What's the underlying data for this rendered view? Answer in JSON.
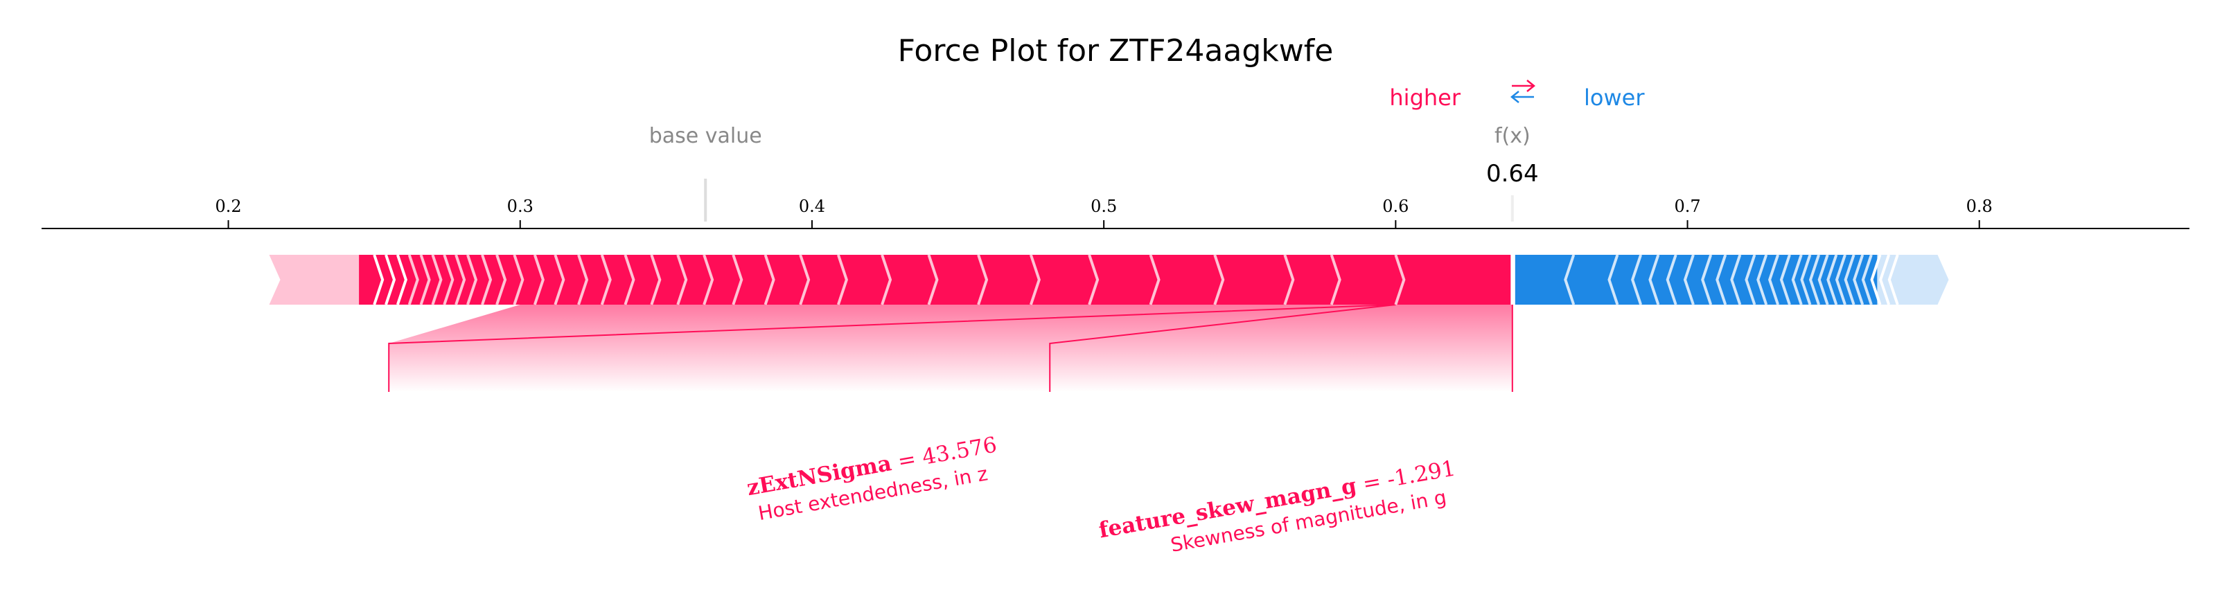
{
  "chart_data": {
    "type": "force",
    "title": "Force Plot for ZTF24aagkwfe",
    "legend": {
      "higher": "higher",
      "arrows": "⇄",
      "lower": "lower"
    },
    "base_value_label": "base value",
    "output_label": "f(x)",
    "output_value": 0.64,
    "output_value_text": "0.64",
    "base_value": 0.3635,
    "xlim": [
      0.136,
      0.872
    ],
    "ticks": [
      {
        "value": 0.2,
        "label": "0.2"
      },
      {
        "value": 0.3,
        "label": "0.3"
      },
      {
        "value": 0.4,
        "label": "0.4"
      },
      {
        "value": 0.5,
        "label": "0.5"
      },
      {
        "value": 0.6,
        "label": "0.6"
      },
      {
        "value": 0.7,
        "label": "0.7"
      },
      {
        "value": 0.8,
        "label": "0.8"
      }
    ],
    "positive_bar": {
      "start": 0.214,
      "end": 0.64
    },
    "negative_bar": {
      "start": 0.64,
      "end": 0.7895
    },
    "labeled_features": [
      {
        "name": "zExtNSigma",
        "value_text": "= 43.576",
        "description": "Host extendedness, in z",
        "range": [
          0.255,
          0.6
        ],
        "label_value": 0.425
      },
      {
        "name": "feature_skew_magn_g",
        "value_text": "= -1.291",
        "description": "Skewness of magnitude, in g",
        "range": [
          0.6,
          0.64
        ],
        "label_value": 0.6
      }
    ],
    "colors": {
      "positive": "#ff0d57",
      "positive_faded": "#ffc3d5",
      "negative": "#1e88e5",
      "negative_faded": "#d1e6fa",
      "base_value_text": "#888888",
      "axis": "#000000"
    }
  }
}
